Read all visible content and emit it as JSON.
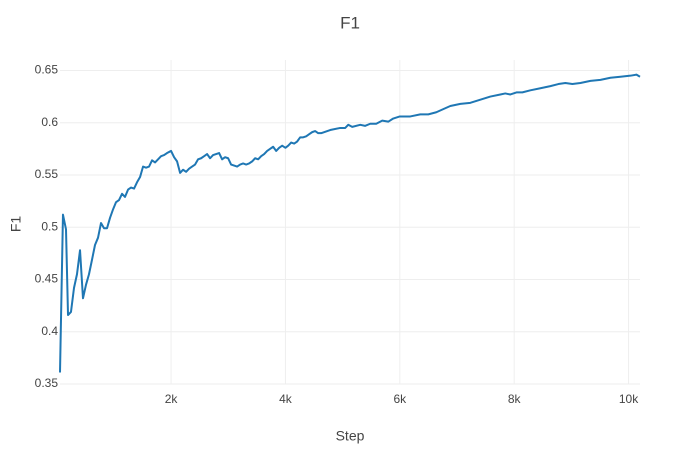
{
  "chart_data": {
    "type": "line",
    "title": "F1",
    "x_label": "Step",
    "y_label": "F1",
    "x": [
      58,
      110,
      163,
      198,
      250,
      303,
      355,
      408,
      460,
      513,
      565,
      618,
      670,
      723,
      775,
      828,
      880,
      933,
      985,
      1038,
      1090,
      1143,
      1195,
      1248,
      1300,
      1353,
      1405,
      1458,
      1510,
      1563,
      1615,
      1668,
      1720,
      1773,
      1825,
      1878,
      1930,
      2000,
      2053,
      2105,
      2158,
      2210,
      2263,
      2315,
      2368,
      2420,
      2473,
      2525,
      2578,
      2630,
      2683,
      2735,
      2788,
      2840,
      2893,
      2945,
      2998,
      3050,
      3103,
      3155,
      3208,
      3260,
      3313,
      3365,
      3418,
      3470,
      3523,
      3575,
      3628,
      3680,
      3733,
      3785,
      3838,
      3890,
      3943,
      4000,
      4048,
      4100,
      4153,
      4205,
      4258,
      4310,
      4363,
      4415,
      4468,
      4520,
      4573,
      4625,
      4783,
      4958,
      5045,
      5098,
      5168,
      5308,
      5395,
      5483,
      5588,
      5693,
      5798,
      5885,
      6000,
      6183,
      6358,
      6498,
      6638,
      6760,
      6883,
      7058,
      7233,
      7408,
      7583,
      7758,
      7845,
      7933,
      8040,
      8143,
      8283,
      8458,
      8633,
      8773,
      8895,
      9018,
      9158,
      9333,
      9508,
      9683,
      9858,
      10033,
      10138,
      10200
    ],
    "series": [
      {
        "name": "F1",
        "color": "#1f77b4",
        "values": [
          0.361,
          0.512,
          0.498,
          0.416,
          0.419,
          0.442,
          0.455,
          0.478,
          0.432,
          0.445,
          0.455,
          0.469,
          0.483,
          0.49,
          0.504,
          0.499,
          0.499,
          0.509,
          0.517,
          0.524,
          0.526,
          0.532,
          0.529,
          0.536,
          0.538,
          0.537,
          0.543,
          0.548,
          0.558,
          0.557,
          0.558,
          0.564,
          0.562,
          0.565,
          0.568,
          0.569,
          0.571,
          0.573,
          0.567,
          0.563,
          0.552,
          0.555,
          0.553,
          0.556,
          0.558,
          0.56,
          0.565,
          0.566,
          0.568,
          0.57,
          0.566,
          0.569,
          0.57,
          0.571,
          0.565,
          0.567,
          0.566,
          0.56,
          0.559,
          0.558,
          0.56,
          0.561,
          0.56,
          0.561,
          0.563,
          0.566,
          0.565,
          0.568,
          0.57,
          0.573,
          0.575,
          0.577,
          0.573,
          0.576,
          0.578,
          0.576,
          0.578,
          0.581,
          0.58,
          0.582,
          0.586,
          0.586,
          0.587,
          0.589,
          0.591,
          0.592,
          0.59,
          0.59,
          0.593,
          0.595,
          0.595,
          0.598,
          0.596,
          0.598,
          0.597,
          0.599,
          0.599,
          0.602,
          0.601,
          0.604,
          0.606,
          0.606,
          0.608,
          0.608,
          0.61,
          0.613,
          0.616,
          0.618,
          0.619,
          0.622,
          0.625,
          0.627,
          0.628,
          0.627,
          0.629,
          0.629,
          0.631,
          0.633,
          0.635,
          0.637,
          0.638,
          0.637,
          0.638,
          0.64,
          0.641,
          0.643,
          0.644,
          0.645,
          0.646,
          0.644
        ]
      }
    ],
    "xlim": [
      58,
      10200
    ],
    "ylim": [
      0.35,
      0.66
    ],
    "xticks": [
      {
        "value": 2000,
        "label": "2k"
      },
      {
        "value": 4000,
        "label": "4k"
      },
      {
        "value": 6000,
        "label": "6k"
      },
      {
        "value": 8000,
        "label": "8k"
      },
      {
        "value": 10000,
        "label": "10k"
      }
    ],
    "yticks": [
      0.35,
      0.4,
      0.45,
      0.5,
      0.55,
      0.6,
      0.65
    ],
    "grid": true
  }
}
